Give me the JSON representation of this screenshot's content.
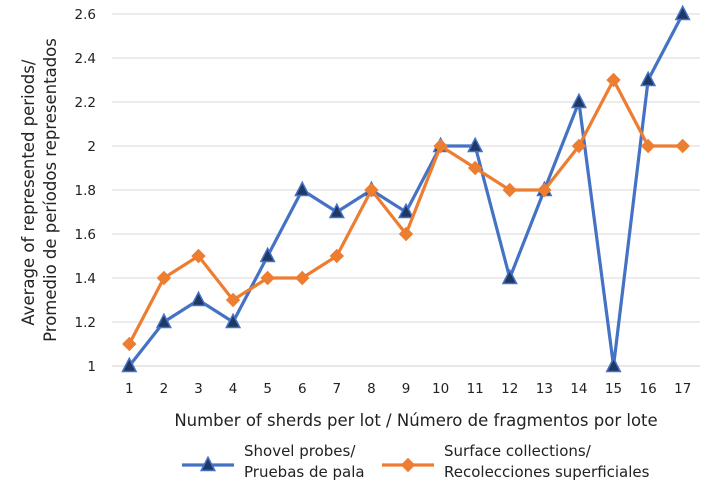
{
  "chart_data": {
    "type": "line",
    "x": [
      1,
      2,
      3,
      4,
      5,
      6,
      7,
      8,
      9,
      10,
      11,
      12,
      13,
      14,
      15,
      16,
      17
    ],
    "xlabel": "Number of sherds per lot / Número de fragmentos por lote",
    "ylabel": [
      "Average of represented periods/",
      "Promedio de períodos representados"
    ],
    "ylim": [
      1,
      2.6
    ],
    "yticks": [
      1,
      1.2,
      1.4,
      1.6,
      1.8,
      2,
      2.2,
      2.4,
      2.6
    ],
    "ytick_labels": [
      "1",
      "1.2",
      "1.4",
      "1.6",
      "1.8",
      "2",
      "2.2",
      "2.4",
      "2.6"
    ],
    "grid": "horizontal",
    "legend_position": "bottom",
    "series": [
      {
        "name": [
          "Shovel probes/",
          "Pruebas de pala"
        ],
        "color": "#4472C4",
        "marker": "triangle",
        "values": [
          1.0,
          1.2,
          1.3,
          1.2,
          1.5,
          1.8,
          1.7,
          1.8,
          1.7,
          2.0,
          2.0,
          1.4,
          1.8,
          2.2,
          1.0,
          2.3,
          2.6
        ]
      },
      {
        "name": [
          "Surface collections/",
          "Recolecciones superficiales"
        ],
        "color": "#ED7D31",
        "marker": "diamond",
        "values": [
          1.1,
          1.4,
          1.5,
          1.3,
          1.4,
          1.4,
          1.5,
          1.8,
          1.6,
          2.0,
          1.9,
          1.8,
          1.8,
          2.0,
          2.3,
          2.0,
          2.0
        ]
      }
    ]
  }
}
